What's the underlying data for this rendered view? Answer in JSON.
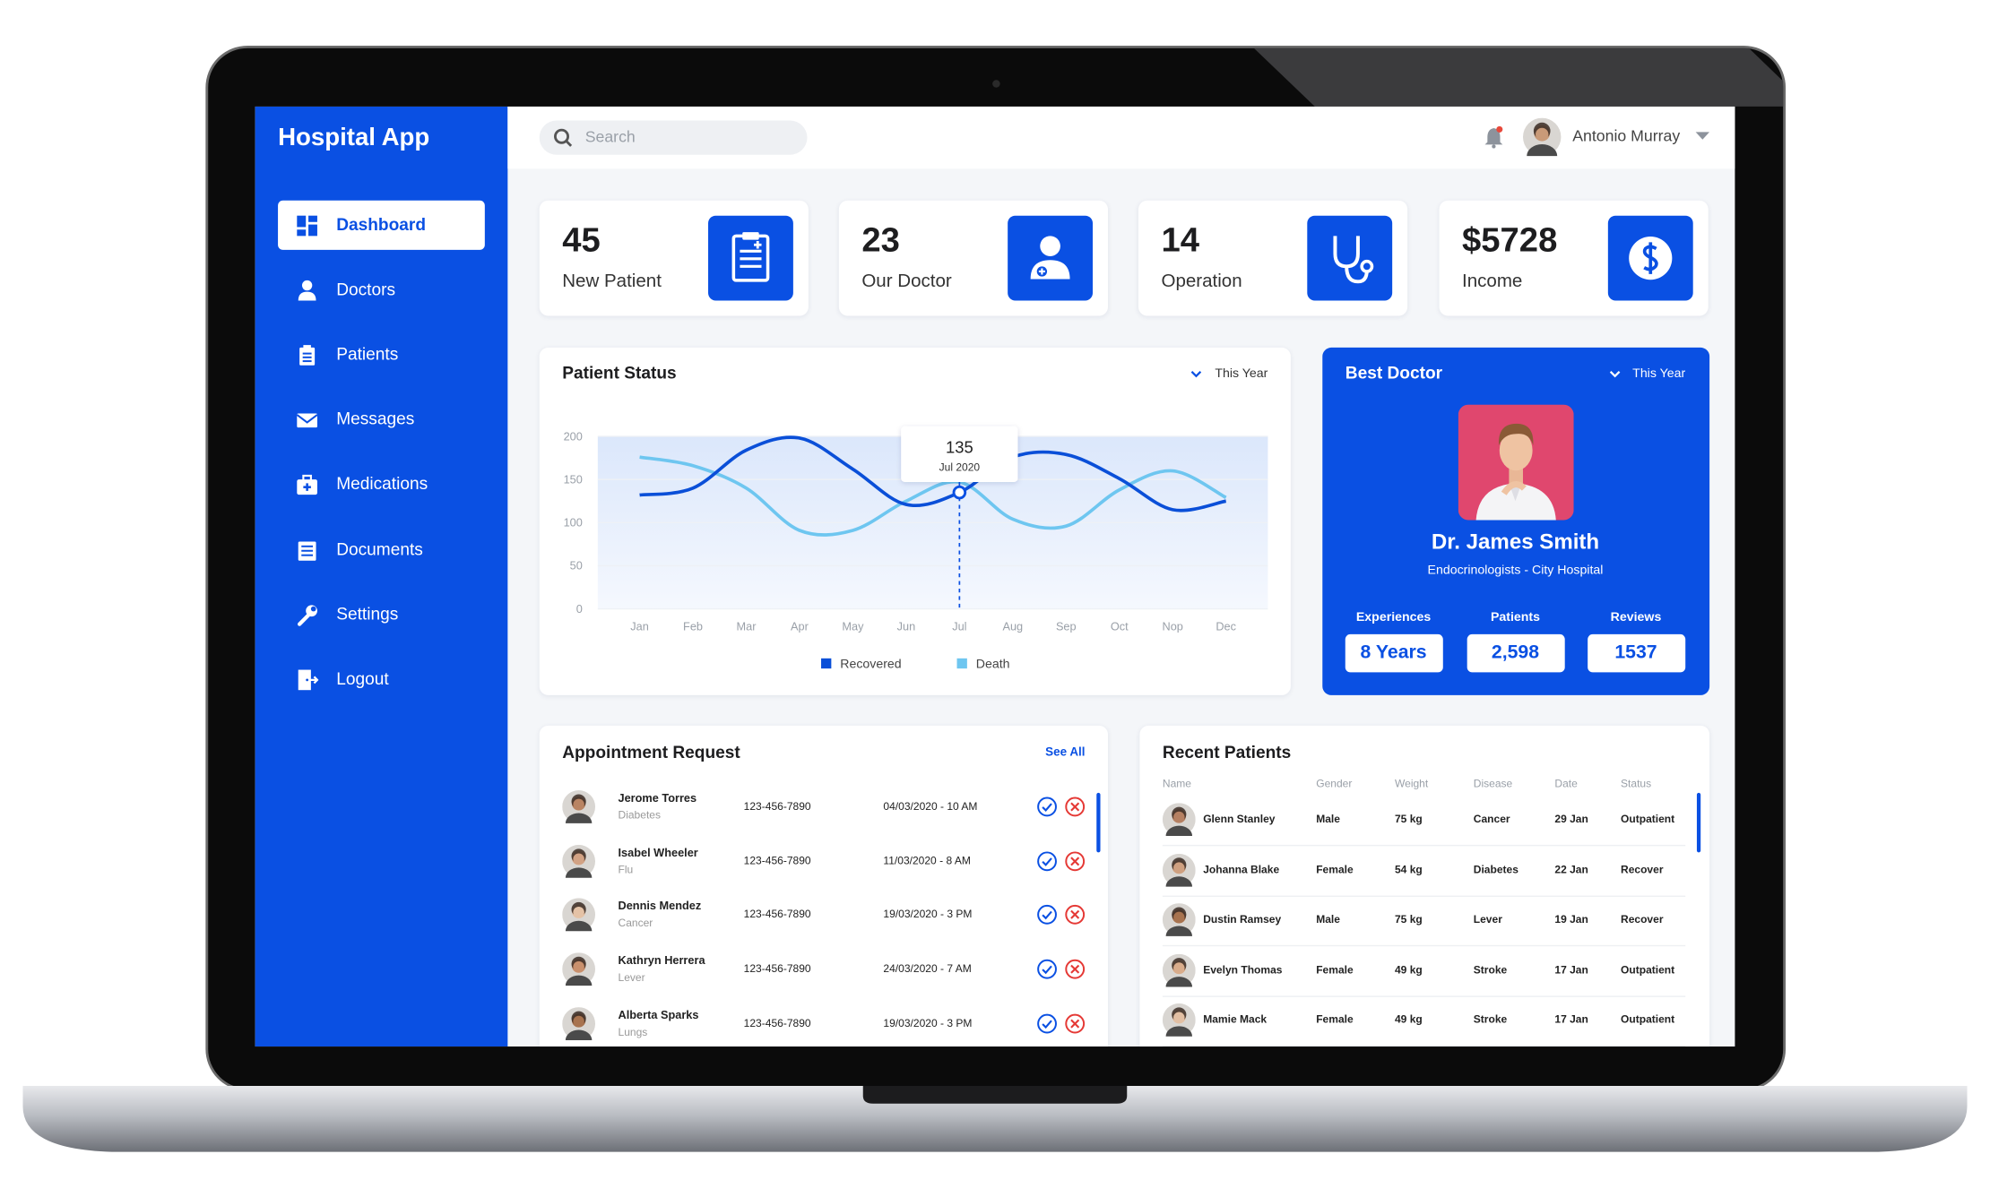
{
  "app_title": "Hospital App",
  "nav": [
    "Dashboard",
    "Doctors",
    "Patients",
    "Messages",
    "Medications",
    "Documents",
    "Settings",
    "Logout"
  ],
  "search_placeholder": "Search",
  "user_name": "Antonio Murray",
  "stats": [
    {
      "value": "45",
      "label": "New Patient"
    },
    {
      "value": "23",
      "label": "Our Doctor"
    },
    {
      "value": "14",
      "label": "Operation"
    },
    {
      "value": "$5728",
      "label": "Income"
    }
  ],
  "chart_data": {
    "type": "line",
    "title": "Patient Status",
    "period": "This Year",
    "categories": [
      "Jan",
      "Feb",
      "Mar",
      "Apr",
      "May",
      "Jun",
      "Jul",
      "Aug",
      "Sep",
      "Oct",
      "Nop",
      "Dec"
    ],
    "series": [
      {
        "name": "Recovered",
        "color": "#0a4fd8",
        "values": [
          132,
          140,
          184,
          198,
          162,
          121,
          135,
          176,
          179,
          151,
          115,
          125
        ]
      },
      {
        "name": "Death",
        "color": "#6ec6f0",
        "values": [
          176,
          166,
          140,
          91,
          91,
          125,
          147,
          104,
          96,
          138,
          160,
          129
        ]
      }
    ],
    "ylim": [
      0,
      200
    ],
    "yticks": [
      0,
      50,
      100,
      150,
      200
    ],
    "grid": true,
    "tooltip": {
      "value": "135",
      "label": "Jul 2020"
    }
  },
  "best_doctor": {
    "title": "Best Doctor",
    "period": "This Year",
    "name": "Dr. James Smith",
    "specialty": "Endocrinologists - City Hospital",
    "stats": [
      {
        "label": "Experiences",
        "value": "8 Years"
      },
      {
        "label": "Patients",
        "value": "2,598"
      },
      {
        "label": "Reviews",
        "value": "1537"
      }
    ]
  },
  "appointments": {
    "title": "Appointment Request",
    "link": "See All",
    "rows": [
      [
        "Jerome Torres",
        "Diabetes",
        "123-456-7890",
        "04/03/2020 - 10 AM"
      ],
      [
        "Isabel Wheeler",
        "Flu",
        "123-456-7890",
        "11/03/2020 - 8 AM"
      ],
      [
        "Dennis Mendez",
        "Cancer",
        "123-456-7890",
        "19/03/2020 - 3 PM"
      ],
      [
        "Kathryn Herrera",
        "Lever",
        "123-456-7890",
        "24/03/2020 - 7 AM"
      ],
      [
        "Alberta Sparks",
        "Lungs",
        "123-456-7890",
        "19/03/2020 - 3 PM"
      ]
    ]
  },
  "recent_patients": {
    "title": "Recent Patients",
    "columns": [
      "Name",
      "Gender",
      "Weight",
      "Disease",
      "Date",
      "Status"
    ],
    "rows": [
      [
        "Glenn Stanley",
        "Male",
        "75 kg",
        "Cancer",
        "29 Jan",
        "Outpatient"
      ],
      [
        "Johanna Blake",
        "Female",
        "54 kg",
        "Diabetes",
        "22 Jan",
        "Recover"
      ],
      [
        "Dustin Ramsey",
        "Male",
        "75 kg",
        "Lever",
        "19 Jan",
        "Recover"
      ],
      [
        "Evelyn Thomas",
        "Female",
        "49 kg",
        "Stroke",
        "17 Jan",
        "Outpatient"
      ],
      [
        "Mamie Mack",
        "Female",
        "49 kg",
        "Stroke",
        "17 Jan",
        "Outpatient"
      ]
    ]
  }
}
